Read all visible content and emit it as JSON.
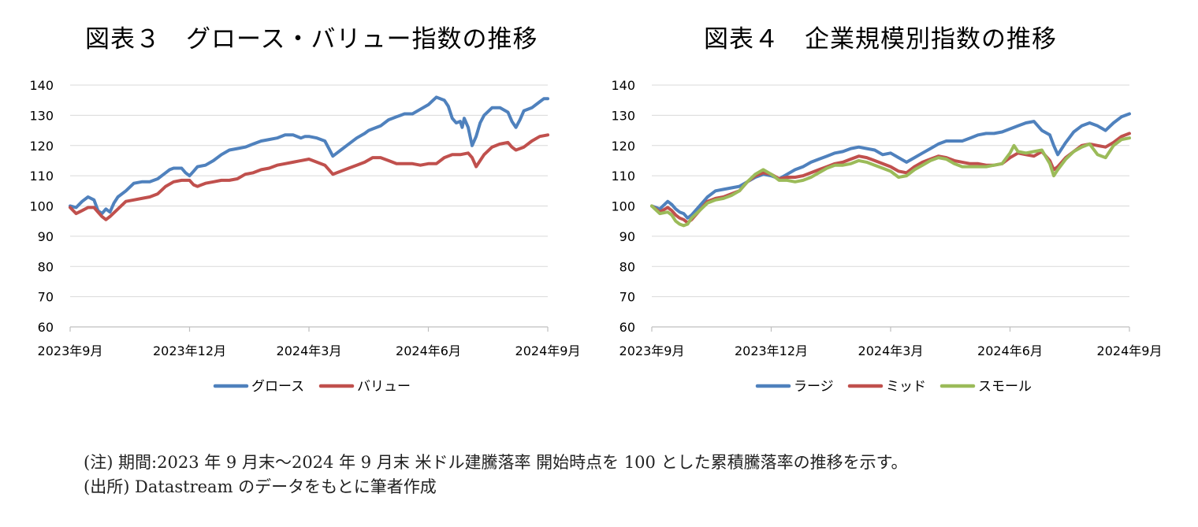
{
  "chart_data": [
    {
      "type": "line",
      "title": "図表３　グロース・バリュー指数の推移",
      "xlabel": "",
      "ylabel": "",
      "ylim": [
        60,
        140
      ],
      "yticks": [
        60,
        70,
        80,
        90,
        100,
        110,
        120,
        130,
        140
      ],
      "xlim": [
        0,
        12
      ],
      "xticks": [
        {
          "x": 0,
          "label": "2023年9月"
        },
        {
          "x": 3,
          "label": "2023年12月"
        },
        {
          "x": 6,
          "label": "2024年3月"
        },
        {
          "x": 9,
          "label": "2024年6月"
        },
        {
          "x": 12,
          "label": "2024年9月"
        }
      ],
      "grid": "horizontal",
      "legend": "bottom",
      "series": [
        {
          "name": "グロース",
          "color": "#4f81bd",
          "x": [
            0,
            0.15,
            0.3,
            0.45,
            0.6,
            0.7,
            0.8,
            0.9,
            1.0,
            1.1,
            1.2,
            1.4,
            1.6,
            1.8,
            2.0,
            2.2,
            2.4,
            2.5,
            2.6,
            2.8,
            2.9,
            3.0,
            3.1,
            3.2,
            3.4,
            3.6,
            3.8,
            4.0,
            4.2,
            4.4,
            4.6,
            4.8,
            5.0,
            5.2,
            5.4,
            5.6,
            5.8,
            5.9,
            6.0,
            6.2,
            6.4,
            6.5,
            6.6,
            6.7,
            6.8,
            7.0,
            7.2,
            7.4,
            7.5,
            7.6,
            7.8,
            8.0,
            8.2,
            8.4,
            8.6,
            8.8,
            9.0,
            9.2,
            9.4,
            9.5,
            9.6,
            9.7,
            9.8,
            9.85,
            9.9,
            10.0,
            10.1,
            10.2,
            10.3,
            10.4,
            10.6,
            10.8,
            11.0,
            11.1,
            11.2,
            11.3,
            11.4,
            11.6,
            11.8,
            11.9,
            12.0
          ],
          "y": [
            100,
            99.5,
            101.5,
            103,
            102,
            98.5,
            97.5,
            99,
            98,
            101,
            103,
            105,
            107.5,
            108,
            108,
            109,
            111,
            112,
            112.5,
            112.5,
            111,
            110,
            111.5,
            113,
            113.5,
            115,
            117,
            118.5,
            119,
            119.5,
            120.5,
            121.5,
            122,
            122.5,
            123.5,
            123.5,
            122.5,
            123,
            123,
            122.5,
            121.5,
            119,
            116.5,
            117.5,
            118.5,
            120.5,
            122.5,
            124,
            125,
            125.5,
            126.5,
            128.5,
            129.5,
            130.5,
            130.5,
            132,
            133.5,
            136,
            135,
            133,
            129,
            127.5,
            128,
            126,
            129,
            126,
            120,
            123,
            127.5,
            130,
            132.5,
            132.5,
            131,
            128,
            126,
            128.5,
            131.5,
            132.5,
            134.5,
            135.5,
            135.5
          ]
        },
        {
          "name": "バリュー",
          "color": "#c0504d",
          "x": [
            0,
            0.15,
            0.3,
            0.45,
            0.6,
            0.7,
            0.8,
            0.9,
            1.0,
            1.2,
            1.4,
            1.6,
            1.8,
            2.0,
            2.2,
            2.4,
            2.6,
            2.8,
            3.0,
            3.1,
            3.2,
            3.4,
            3.6,
            3.8,
            4.0,
            4.2,
            4.4,
            4.6,
            4.8,
            5.0,
            5.2,
            5.4,
            5.6,
            5.8,
            6.0,
            6.2,
            6.4,
            6.5,
            6.6,
            6.8,
            7.0,
            7.2,
            7.4,
            7.6,
            7.8,
            8.0,
            8.2,
            8.4,
            8.6,
            8.8,
            9.0,
            9.2,
            9.4,
            9.6,
            9.8,
            10.0,
            10.1,
            10.2,
            10.3,
            10.4,
            10.6,
            10.8,
            11.0,
            11.1,
            11.2,
            11.4,
            11.6,
            11.8,
            12.0
          ],
          "y": [
            99.5,
            97.5,
            98.5,
            99.5,
            99.5,
            98,
            96.5,
            95.5,
            96.5,
            99,
            101.5,
            102,
            102.5,
            103,
            104,
            106.5,
            108,
            108.5,
            108.5,
            107,
            106.5,
            107.5,
            108,
            108.5,
            108.5,
            109,
            110.5,
            111,
            112,
            112.5,
            113.5,
            114,
            114.5,
            115,
            115.5,
            114.5,
            113.5,
            112,
            110.5,
            111.5,
            112.5,
            113.5,
            114.5,
            116,
            116,
            115,
            114,
            114,
            114,
            113.5,
            114,
            114,
            116,
            117,
            117,
            117.5,
            116,
            113,
            115,
            117,
            119.5,
            120.5,
            121,
            119.5,
            118.5,
            119.5,
            121.5,
            123,
            123.5
          ]
        }
      ]
    },
    {
      "type": "line",
      "title": "図表４　企業規模別指数の推移",
      "xlabel": "",
      "ylabel": "",
      "ylim": [
        60,
        140
      ],
      "yticks": [
        60,
        70,
        80,
        90,
        100,
        110,
        120,
        130,
        140
      ],
      "xlim": [
        0,
        12
      ],
      "xticks": [
        {
          "x": 0,
          "label": "2023年9月"
        },
        {
          "x": 3,
          "label": "2023年12月"
        },
        {
          "x": 6,
          "label": "2024年3月"
        },
        {
          "x": 9,
          "label": "2024年6月"
        },
        {
          "x": 12,
          "label": "2024年9月"
        }
      ],
      "grid": "horizontal",
      "legend": "bottom",
      "series": [
        {
          "name": "ラージ",
          "color": "#4f81bd",
          "x": [
            0,
            0.2,
            0.4,
            0.5,
            0.6,
            0.7,
            0.8,
            0.9,
            1.0,
            1.2,
            1.4,
            1.6,
            1.8,
            2.0,
            2.2,
            2.4,
            2.6,
            2.8,
            3.0,
            3.2,
            3.4,
            3.6,
            3.8,
            4.0,
            4.2,
            4.4,
            4.6,
            4.8,
            5.0,
            5.2,
            5.4,
            5.6,
            5.8,
            6.0,
            6.2,
            6.4,
            6.6,
            6.8,
            7.0,
            7.2,
            7.4,
            7.6,
            7.8,
            8.0,
            8.2,
            8.4,
            8.6,
            8.8,
            9.0,
            9.2,
            9.4,
            9.6,
            9.8,
            10.0,
            10.1,
            10.2,
            10.4,
            10.6,
            10.8,
            11.0,
            11.2,
            11.4,
            11.6,
            11.8,
            12.0
          ],
          "y": [
            100,
            99,
            101.5,
            100.5,
            99,
            98,
            97.5,
            96,
            97,
            100,
            103,
            105,
            105.5,
            106,
            106.5,
            108,
            109.5,
            110.5,
            110,
            109,
            110.5,
            112,
            113,
            114.5,
            115.5,
            116.5,
            117.5,
            118,
            119,
            119.5,
            119,
            118.5,
            117,
            117.5,
            116,
            114.5,
            116,
            117.5,
            119,
            120.5,
            121.5,
            121.5,
            121.5,
            122.5,
            123.5,
            124,
            124,
            124.5,
            125.5,
            126.5,
            127.5,
            128,
            125,
            123.5,
            120,
            117,
            121,
            124.5,
            126.5,
            127.5,
            126.5,
            125,
            127.5,
            129.5,
            130.5
          ]
        },
        {
          "name": "ミッド",
          "color": "#c0504d",
          "x": [
            0,
            0.2,
            0.4,
            0.5,
            0.6,
            0.7,
            0.8,
            0.9,
            1.0,
            1.2,
            1.4,
            1.6,
            1.8,
            2.0,
            2.2,
            2.4,
            2.6,
            2.8,
            3.0,
            3.2,
            3.4,
            3.6,
            3.8,
            4.0,
            4.2,
            4.4,
            4.6,
            4.8,
            5.0,
            5.2,
            5.4,
            5.6,
            5.8,
            6.0,
            6.2,
            6.4,
            6.6,
            6.8,
            7.0,
            7.2,
            7.4,
            7.6,
            7.8,
            8.0,
            8.2,
            8.4,
            8.6,
            8.8,
            9.0,
            9.2,
            9.4,
            9.6,
            9.8,
            10.0,
            10.1,
            10.2,
            10.4,
            10.6,
            10.8,
            11.0,
            11.2,
            11.4,
            11.6,
            11.8,
            12.0
          ],
          "y": [
            100,
            98,
            99.5,
            98.5,
            97,
            96,
            95.5,
            94.5,
            95.5,
            98.5,
            101.5,
            102.5,
            103,
            104,
            105,
            108,
            110,
            111,
            110.5,
            109,
            109.5,
            109.5,
            110,
            111,
            112,
            113,
            114,
            114.5,
            115.5,
            116.5,
            116,
            115,
            114,
            113,
            111.5,
            111,
            113,
            114.5,
            115.5,
            116.5,
            116,
            115,
            114.5,
            114,
            114,
            113.5,
            113.5,
            114,
            116,
            117.5,
            117,
            116.5,
            118,
            115,
            112,
            113,
            116,
            118,
            120,
            120.5,
            120,
            119.5,
            121,
            123,
            124
          ]
        },
        {
          "name": "スモール",
          "color": "#9bbb59",
          "x": [
            0,
            0.2,
            0.4,
            0.5,
            0.6,
            0.7,
            0.8,
            0.9,
            1.0,
            1.2,
            1.4,
            1.6,
            1.8,
            2.0,
            2.2,
            2.4,
            2.6,
            2.8,
            3.0,
            3.2,
            3.4,
            3.6,
            3.8,
            4.0,
            4.2,
            4.4,
            4.6,
            4.8,
            5.0,
            5.2,
            5.4,
            5.6,
            5.8,
            6.0,
            6.2,
            6.4,
            6.6,
            6.8,
            7.0,
            7.2,
            7.4,
            7.6,
            7.8,
            8.0,
            8.2,
            8.4,
            8.6,
            8.8,
            9.0,
            9.1,
            9.2,
            9.4,
            9.6,
            9.8,
            10.0,
            10.1,
            10.2,
            10.4,
            10.6,
            10.8,
            11.0,
            11.2,
            11.4,
            11.6,
            11.8,
            12.0
          ],
          "y": [
            100,
            97.5,
            98,
            97,
            95,
            94,
            93.5,
            94,
            96,
            98.5,
            101,
            102,
            102.5,
            103.5,
            105,
            108,
            110.5,
            112,
            110.5,
            108.5,
            108.5,
            108,
            108.5,
            109.5,
            111,
            112.5,
            113.5,
            113.5,
            114,
            115,
            114.5,
            113.5,
            112.5,
            111.5,
            109.5,
            110,
            112,
            113.5,
            115,
            116,
            115.5,
            114,
            113,
            113,
            113,
            113,
            113.5,
            114,
            117.5,
            120,
            118,
            117.5,
            118,
            118.5,
            114,
            110,
            112,
            115.5,
            118,
            119.5,
            120.5,
            117,
            116,
            120,
            122,
            122.5
          ]
        }
      ]
    }
  ],
  "notes": {
    "line1": "(注) 期間:2023 年 9 月末～2024 年 9 月末 米ドル建騰落率 開始時点を 100 とした累積騰落率の推移を示す。",
    "line2": "(出所) Datastream のデータをもとに筆者作成"
  }
}
